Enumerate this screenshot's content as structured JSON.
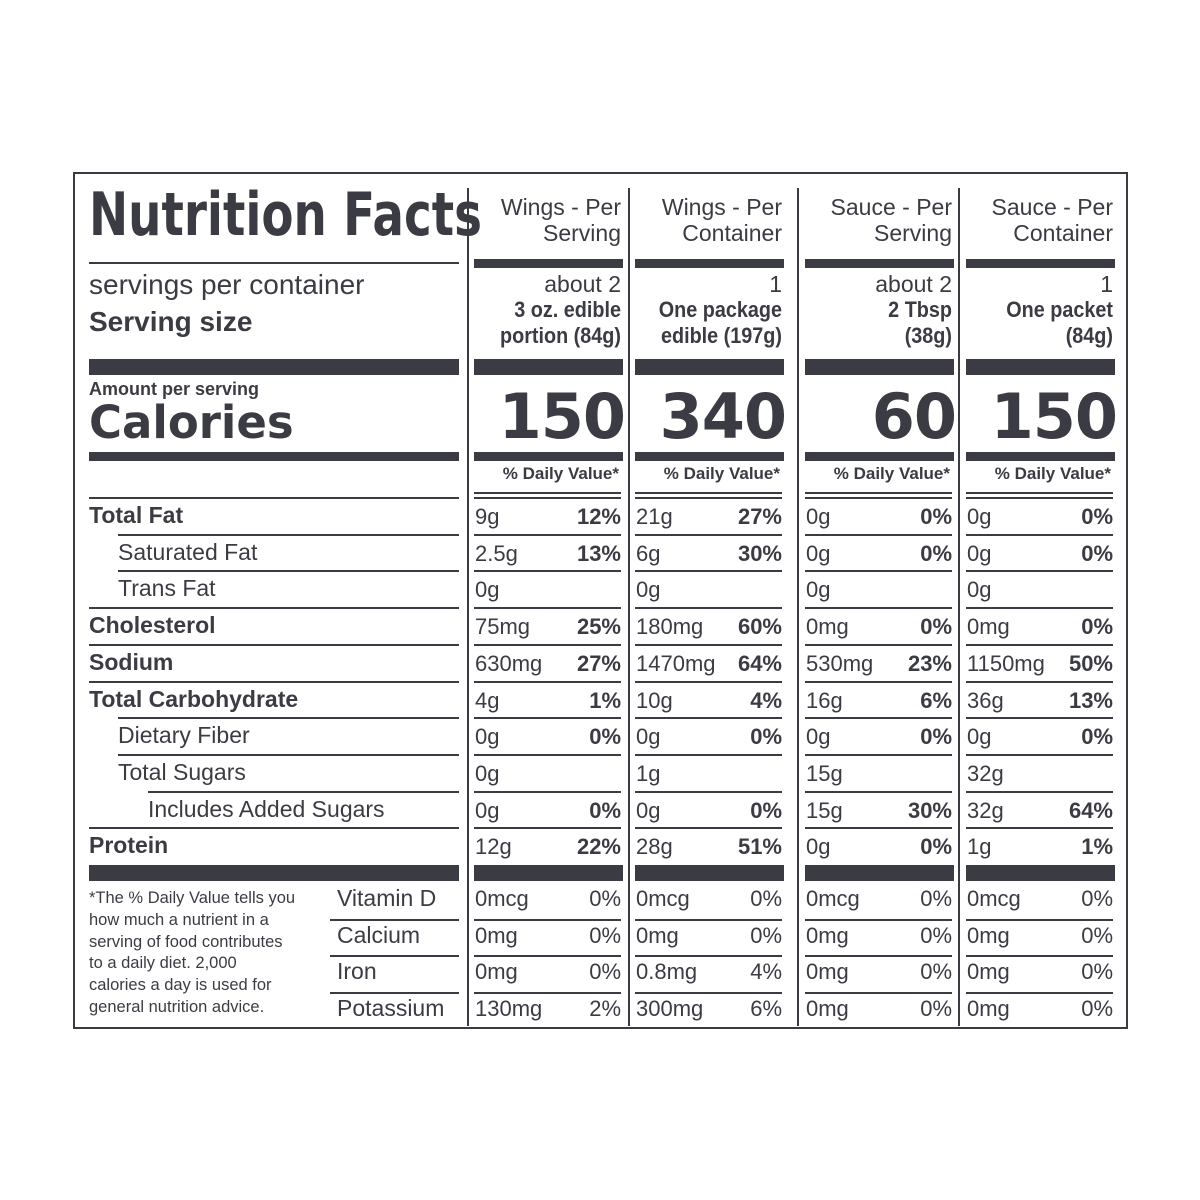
{
  "title": "Nutrition Facts",
  "servings_label": "servings per container",
  "serving_size_label": "Serving size",
  "amount_per_serving": "Amount per serving",
  "calories_label": "Calories",
  "daily_value_header": "% Daily Value*",
  "columns": [
    {
      "header_line1": "Wings - Per",
      "header_line2": "Serving",
      "servings": "about 2",
      "size_line1": "3 oz. edible",
      "size_line2": "portion (84g)",
      "calories": "150"
    },
    {
      "header_line1": "Wings - Per",
      "header_line2": "Container",
      "servings": "1",
      "size_line1": "One package",
      "size_line2": "edible (197g)",
      "calories": "340"
    },
    {
      "header_line1": "Sauce - Per",
      "header_line2": "Serving",
      "servings": "about 2",
      "size_line1": "2 Tbsp",
      "size_line2": "(38g)",
      "calories": "60"
    },
    {
      "header_line1": "Sauce - Per",
      "header_line2": "Container",
      "servings": "1",
      "size_line1": "One packet",
      "size_line2": "(84g)",
      "calories": "150"
    }
  ],
  "nutrients": [
    {
      "label": "Total Fat",
      "bold": true,
      "indent": 0,
      "values": [
        [
          "9g",
          "12%"
        ],
        [
          "21g",
          "27%"
        ],
        [
          "0g",
          "0%"
        ],
        [
          "0g",
          "0%"
        ]
      ]
    },
    {
      "label": "Saturated Fat",
      "bold": false,
      "indent": 1,
      "values": [
        [
          "2.5g",
          "13%"
        ],
        [
          "6g",
          "30%"
        ],
        [
          "0g",
          "0%"
        ],
        [
          "0g",
          "0%"
        ]
      ]
    },
    {
      "label": "Trans Fat",
      "bold": false,
      "indent": 1,
      "values": [
        [
          "0g",
          ""
        ],
        [
          "0g",
          ""
        ],
        [
          "0g",
          ""
        ],
        [
          "0g",
          ""
        ]
      ]
    },
    {
      "label": "Cholesterol",
      "bold": true,
      "indent": 0,
      "values": [
        [
          "75mg",
          "25%"
        ],
        [
          "180mg",
          "60%"
        ],
        [
          "0mg",
          "0%"
        ],
        [
          "0mg",
          "0%"
        ]
      ]
    },
    {
      "label": "Sodium",
      "bold": true,
      "indent": 0,
      "values": [
        [
          "630mg",
          "27%"
        ],
        [
          "1470mg",
          "64%"
        ],
        [
          "530mg",
          "23%"
        ],
        [
          "1150mg",
          "50%"
        ]
      ]
    },
    {
      "label": "Total Carbohydrate",
      "bold": true,
      "indent": 0,
      "values": [
        [
          "4g",
          "1%"
        ],
        [
          "10g",
          "4%"
        ],
        [
          "16g",
          "6%"
        ],
        [
          "36g",
          "13%"
        ]
      ]
    },
    {
      "label": "Dietary Fiber",
      "bold": false,
      "indent": 1,
      "values": [
        [
          "0g",
          "0%"
        ],
        [
          "0g",
          "0%"
        ],
        [
          "0g",
          "0%"
        ],
        [
          "0g",
          "0%"
        ]
      ]
    },
    {
      "label": "Total Sugars",
      "bold": false,
      "indent": 1,
      "values": [
        [
          "0g",
          ""
        ],
        [
          "1g",
          ""
        ],
        [
          "15g",
          ""
        ],
        [
          "32g",
          ""
        ]
      ]
    },
    {
      "label": "Includes Added Sugars",
      "bold": false,
      "indent": 2,
      "values": [
        [
          "0g",
          "0%"
        ],
        [
          "0g",
          "0%"
        ],
        [
          "15g",
          "30%"
        ],
        [
          "32g",
          "64%"
        ]
      ]
    },
    {
      "label": "Protein",
      "bold": true,
      "indent": 0,
      "values": [
        [
          "12g",
          "22%"
        ],
        [
          "28g",
          "51%"
        ],
        [
          "0g",
          "0%"
        ],
        [
          "1g",
          "1%"
        ]
      ]
    }
  ],
  "vitamins": [
    {
      "label": "Vitamin D",
      "values": [
        [
          "0mcg",
          "0%"
        ],
        [
          "0mcg",
          "0%"
        ],
        [
          "0mcg",
          "0%"
        ],
        [
          "0mcg",
          "0%"
        ]
      ]
    },
    {
      "label": "Calcium",
      "values": [
        [
          "0mg",
          "0%"
        ],
        [
          "0mg",
          "0%"
        ],
        [
          "0mg",
          "0%"
        ],
        [
          "0mg",
          "0%"
        ]
      ]
    },
    {
      "label": "Iron",
      "values": [
        [
          "0mg",
          "0%"
        ],
        [
          "0.8mg",
          "4%"
        ],
        [
          "0mg",
          "0%"
        ],
        [
          "0mg",
          "0%"
        ]
      ]
    },
    {
      "label": "Potassium",
      "values": [
        [
          "130mg",
          "2%"
        ],
        [
          "300mg",
          "6%"
        ],
        [
          "0mg",
          "0%"
        ],
        [
          "0mg",
          "0%"
        ]
      ]
    }
  ],
  "footnote_lines": [
    "*The % Daily Value tells you",
    "how much a nutrient in a",
    "serving of food contributes",
    "to a daily diet. 2,000",
    "calories a day is used for",
    "general nutrition advice."
  ]
}
